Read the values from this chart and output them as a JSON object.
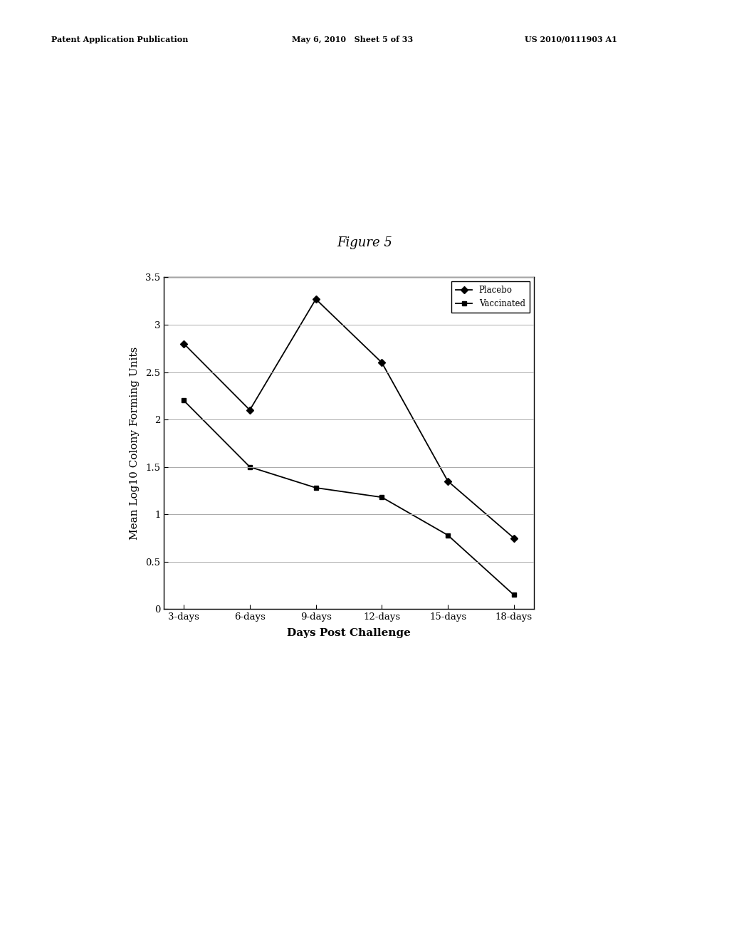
{
  "title": "Figure 5",
  "xlabel": "Days Post Challenge",
  "ylabel": "Mean Log10 Colony Forming Units",
  "x_labels": [
    "3-days",
    "6-days",
    "9-days",
    "12-days",
    "15-days",
    "18-days"
  ],
  "x_values": [
    0,
    1,
    2,
    3,
    4,
    5
  ],
  "placebo_y": [
    2.8,
    2.1,
    3.27,
    2.6,
    1.35,
    0.75
  ],
  "vaccinated_y": [
    2.2,
    1.5,
    1.28,
    1.18,
    0.78,
    0.15
  ],
  "ylim": [
    0,
    3.5
  ],
  "yticks": [
    0,
    0.5,
    1,
    1.5,
    2,
    2.5,
    3,
    3.5
  ],
  "legend_labels": [
    "Placebo",
    "Vaccinated"
  ],
  "line_color": "#000000",
  "background_color": "#ffffff",
  "title_fontsize": 13,
  "axis_label_fontsize": 11,
  "tick_fontsize": 9.5,
  "legend_fontsize": 8.5,
  "header_left": "Patent Application Publication",
  "header_mid": "May 6, 2010   Sheet 5 of 33",
  "header_right": "US 2010/0111903 A1",
  "header_fontsize": 8
}
